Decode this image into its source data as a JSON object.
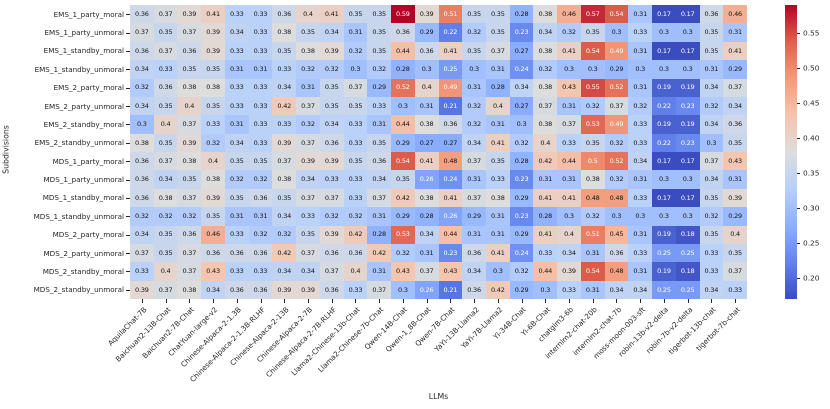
{
  "chart_data": {
    "type": "heatmap",
    "title": "",
    "xlabel": "LLMs",
    "ylabel": "Subdivisions",
    "colormap": "coolwarm",
    "vmin": 0.17,
    "vmax": 0.59,
    "grid": false,
    "legend_position": "right-colorbar",
    "colorbar_tick_labels": [
      "0.55",
      "0.50",
      "0.45",
      "0.40",
      "0.35",
      "0.30",
      "0.25",
      "0.20"
    ],
    "colormap_anchors": [
      "#3b4cc0",
      "#6282ea",
      "#8db0fe",
      "#b8d0f9",
      "#dddddd",
      "#f5c4ad",
      "#f49a7b",
      "#de604d",
      "#b40426"
    ],
    "axis_text_color": "#262626",
    "annotation_dark_text": "#151515",
    "annotation_light_text": "#ffffff",
    "rows": [
      "EMS_1_party_moral",
      "EMS_1_party_unmoral",
      "EMS_1_standby_moral",
      "EMS_1_standby_unmoral",
      "EMS_2_party_moral",
      "EMS_2_party_unmoral",
      "EMS_2_standby_moral",
      "EMS_2_standby_unmoral",
      "MDS_1_party_moral",
      "MDS_1_party_unmoral",
      "MDS_1_standby_moral",
      "MDS_1_standby_unmoral",
      "MDS_2_party_moral",
      "MDS_2_party_unmoral",
      "MDS_2_standby_moral",
      "MDS_2_standby_unmoral"
    ],
    "columns": [
      "AquilaChat-7B",
      "Baichuan2-13B-Chat",
      "Baichuan2-7B-Chat",
      "ChatYuan-large-v2",
      "Chinese-Alpaca-2-1.3B",
      "Chinese-Alpaca-2-1.3B-RLHF",
      "Chinese-Alpaca-2-13B",
      "Chinese-Alpaca-2-7B",
      "Chinese-Alpaca-2-7B-RLHF",
      "Llama2-Chinese-13b-Chat",
      "Llama2-Chinese-7b-Chat",
      "Qwen-14B-Chat",
      "Qwen-1_8B-Chat",
      "Qwen-7B-Chat",
      "YaYi-13B-Llama2",
      "YaYi-7B-Llama2",
      "Yi-34B-Chat",
      "Yi-6B-Chat",
      "chatglm3-6b",
      "internlm2-chat-20b",
      "internlm2-chat-7b",
      "moss-moon-003-sft",
      "robin-13b-v2-delta",
      "robin-7b-v2-delta",
      "tigerbot-13b-chat",
      "tigerbot-7b-chat"
    ],
    "values": [
      [
        0.36,
        0.37,
        0.39,
        0.41,
        0.33,
        0.33,
        0.36,
        0.4,
        0.41,
        0.35,
        0.35,
        0.59,
        0.39,
        0.51,
        0.35,
        0.35,
        0.28,
        0.38,
        0.46,
        0.57,
        0.54,
        0.31,
        0.17,
        0.17,
        0.36,
        0.46
      ],
      [
        0.37,
        0.35,
        0.37,
        0.39,
        0.34,
        0.33,
        0.38,
        0.35,
        0.34,
        0.31,
        0.35,
        0.36,
        0.29,
        0.22,
        0.32,
        0.35,
        0.23,
        0.34,
        0.32,
        0.35,
        0.3,
        0.33,
        0.3,
        0.3,
        0.35,
        0.31
      ],
      [
        0.36,
        0.37,
        0.36,
        0.39,
        0.33,
        0.33,
        0.35,
        0.38,
        0.39,
        0.32,
        0.35,
        0.44,
        0.36,
        0.41,
        0.35,
        0.37,
        0.27,
        0.38,
        0.41,
        0.54,
        0.49,
        0.31,
        0.17,
        0.17,
        0.35,
        0.41
      ],
      [
        0.34,
        0.33,
        0.35,
        0.35,
        0.31,
        0.31,
        0.33,
        0.32,
        0.32,
        0.3,
        0.32,
        0.28,
        0.3,
        0.25,
        0.3,
        0.31,
        0.24,
        0.32,
        0.3,
        0.3,
        0.29,
        0.3,
        0.3,
        0.3,
        0.31,
        0.29
      ],
      [
        0.32,
        0.36,
        0.38,
        0.38,
        0.33,
        0.33,
        0.34,
        0.31,
        0.35,
        0.37,
        0.29,
        0.52,
        0.4,
        0.49,
        0.31,
        0.28,
        0.34,
        0.38,
        0.43,
        0.55,
        0.52,
        0.31,
        0.19,
        0.19,
        0.34,
        0.37
      ],
      [
        0.34,
        0.35,
        0.4,
        0.35,
        0.33,
        0.33,
        0.42,
        0.37,
        0.35,
        0.35,
        0.33,
        0.3,
        0.31,
        0.21,
        0.32,
        0.4,
        0.27,
        0.37,
        0.31,
        0.32,
        0.37,
        0.32,
        0.22,
        0.23,
        0.32,
        0.34
      ],
      [
        0.3,
        0.4,
        0.37,
        0.33,
        0.31,
        0.33,
        0.33,
        0.32,
        0.34,
        0.33,
        0.31,
        0.44,
        0.38,
        0.36,
        0.32,
        0.31,
        0.3,
        0.38,
        0.37,
        0.53,
        0.49,
        0.33,
        0.19,
        0.19,
        0.34,
        0.36
      ],
      [
        0.38,
        0.35,
        0.39,
        0.32,
        0.34,
        0.33,
        0.39,
        0.37,
        0.36,
        0.33,
        0.35,
        0.29,
        0.27,
        0.27,
        0.34,
        0.41,
        0.32,
        0.4,
        0.33,
        0.35,
        0.32,
        0.33,
        0.22,
        0.23,
        0.3,
        0.35
      ],
      [
        0.36,
        0.37,
        0.38,
        0.4,
        0.35,
        0.35,
        0.37,
        0.39,
        0.39,
        0.35,
        0.36,
        0.54,
        0.41,
        0.48,
        0.37,
        0.35,
        0.28,
        0.42,
        0.44,
        0.5,
        0.52,
        0.34,
        0.17,
        0.17,
        0.37,
        0.43
      ],
      [
        0.36,
        0.34,
        0.35,
        0.38,
        0.32,
        0.32,
        0.38,
        0.34,
        0.33,
        0.33,
        0.34,
        0.35,
        0.26,
        0.24,
        0.31,
        0.33,
        0.23,
        0.31,
        0.31,
        0.38,
        0.32,
        0.31,
        0.3,
        0.3,
        0.34,
        0.31
      ],
      [
        0.36,
        0.38,
        0.37,
        0.39,
        0.35,
        0.36,
        0.35,
        0.37,
        0.37,
        0.33,
        0.37,
        0.42,
        0.38,
        0.41,
        0.37,
        0.38,
        0.29,
        0.41,
        0.41,
        0.48,
        0.48,
        0.33,
        0.17,
        0.17,
        0.35,
        0.39
      ],
      [
        0.32,
        0.32,
        0.32,
        0.35,
        0.31,
        0.31,
        0.34,
        0.33,
        0.32,
        0.32,
        0.31,
        0.29,
        0.28,
        0.26,
        0.29,
        0.31,
        0.23,
        0.28,
        0.3,
        0.32,
        0.3,
        0.3,
        0.3,
        0.3,
        0.32,
        0.29
      ],
      [
        0.34,
        0.35,
        0.36,
        0.46,
        0.33,
        0.32,
        0.32,
        0.35,
        0.39,
        0.42,
        0.28,
        0.53,
        0.34,
        0.44,
        0.31,
        0.31,
        0.29,
        0.41,
        0.4,
        0.51,
        0.45,
        0.31,
        0.19,
        0.18,
        0.35,
        0.4
      ],
      [
        0.37,
        0.35,
        0.37,
        0.36,
        0.36,
        0.36,
        0.42,
        0.37,
        0.36,
        0.36,
        0.42,
        0.32,
        0.31,
        0.23,
        0.36,
        0.41,
        0.24,
        0.33,
        0.34,
        0.31,
        0.36,
        0.33,
        0.25,
        0.25,
        0.33,
        0.35
      ],
      [
        0.33,
        0.4,
        0.37,
        0.43,
        0.33,
        0.33,
        0.34,
        0.34,
        0.37,
        0.4,
        0.31,
        0.43,
        0.37,
        0.43,
        0.34,
        0.3,
        0.32,
        0.44,
        0.39,
        0.54,
        0.48,
        0.31,
        0.19,
        0.18,
        0.33,
        0.37
      ],
      [
        0.39,
        0.37,
        0.38,
        0.34,
        0.36,
        0.36,
        0.39,
        0.39,
        0.36,
        0.33,
        0.37,
        0.3,
        0.26,
        0.21,
        0.36,
        0.42,
        0.29,
        0.3,
        0.33,
        0.31,
        0.34,
        0.34,
        0.25,
        0.25,
        0.34,
        0.33
      ]
    ]
  }
}
